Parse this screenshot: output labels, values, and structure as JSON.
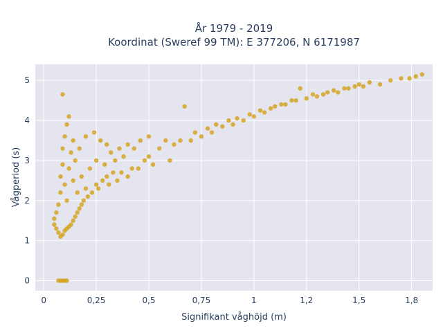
{
  "chart_data": {
    "type": "scatter",
    "title_line1": "År 1979 - 2019",
    "title_line2": "Koordinat (Sweref 99 TM): E 377206, N 6171987",
    "xlabel": "Signifikant våghöjd (m)",
    "ylabel": "Vågperiod (s)",
    "xlim": [
      -0.04,
      1.85
    ],
    "ylim": [
      -0.25,
      5.4
    ],
    "x_ticks": [
      {
        "value": 0,
        "label": "0"
      },
      {
        "value": 0.25,
        "label": "0,25"
      },
      {
        "value": 0.5,
        "label": "0,5"
      },
      {
        "value": 0.75,
        "label": "0,75"
      },
      {
        "value": 1,
        "label": "1"
      },
      {
        "value": 1.25,
        "label": "1,2"
      },
      {
        "value": 1.5,
        "label": "1,5"
      },
      {
        "value": 1.75,
        "label": "1,8"
      }
    ],
    "y_ticks": [
      {
        "value": 0,
        "label": "0"
      },
      {
        "value": 1,
        "label": "1"
      },
      {
        "value": 2,
        "label": "2"
      },
      {
        "value": 3,
        "label": "3"
      },
      {
        "value": 4,
        "label": "4"
      },
      {
        "value": 5,
        "label": "5"
      }
    ],
    "grid": true,
    "point_color": "#D4A017",
    "background_color": "#E5E5EF",
    "grid_color": "#FFFFFF",
    "series": [
      {
        "points": [
          [
            0.07,
            0
          ],
          [
            0.08,
            0
          ],
          [
            0.09,
            0
          ],
          [
            0.1,
            0
          ],
          [
            0.11,
            0
          ],
          [
            0.09,
            4.65
          ],
          [
            0.05,
            1.4
          ],
          [
            0.05,
            1.55
          ],
          [
            0.06,
            1.3
          ],
          [
            0.06,
            1.7
          ],
          [
            0.07,
            1.2
          ],
          [
            0.07,
            1.9
          ],
          [
            0.08,
            1.1
          ],
          [
            0.08,
            2.2
          ],
          [
            0.08,
            2.6
          ],
          [
            0.09,
            1.15
          ],
          [
            0.09,
            2.9
          ],
          [
            0.09,
            3.3
          ],
          [
            0.1,
            1.25
          ],
          [
            0.1,
            2.4
          ],
          [
            0.1,
            3.6
          ],
          [
            0.11,
            1.3
          ],
          [
            0.11,
            2.0
          ],
          [
            0.11,
            3.9
          ],
          [
            0.12,
            1.35
          ],
          [
            0.12,
            2.8
          ],
          [
            0.12,
            4.1
          ],
          [
            0.13,
            1.4
          ],
          [
            0.13,
            3.2
          ],
          [
            0.14,
            1.5
          ],
          [
            0.14,
            2.5
          ],
          [
            0.14,
            3.5
          ],
          [
            0.15,
            1.6
          ],
          [
            0.15,
            3.0
          ],
          [
            0.16,
            1.7
          ],
          [
            0.16,
            2.2
          ],
          [
            0.17,
            1.8
          ],
          [
            0.17,
            3.3
          ],
          [
            0.18,
            1.9
          ],
          [
            0.18,
            2.6
          ],
          [
            0.19,
            2.0
          ],
          [
            0.2,
            3.6
          ],
          [
            0.2,
            2.3
          ],
          [
            0.21,
            2.1
          ],
          [
            0.22,
            2.8
          ],
          [
            0.23,
            2.2
          ],
          [
            0.24,
            3.7
          ],
          [
            0.25,
            2.4
          ],
          [
            0.25,
            3.0
          ],
          [
            0.26,
            2.3
          ],
          [
            0.27,
            3.5
          ],
          [
            0.28,
            2.5
          ],
          [
            0.29,
            2.9
          ],
          [
            0.3,
            2.6
          ],
          [
            0.3,
            3.4
          ],
          [
            0.31,
            2.4
          ],
          [
            0.32,
            3.2
          ],
          [
            0.33,
            2.7
          ],
          [
            0.34,
            3.0
          ],
          [
            0.35,
            2.5
          ],
          [
            0.36,
            3.3
          ],
          [
            0.37,
            2.7
          ],
          [
            0.38,
            3.1
          ],
          [
            0.4,
            2.6
          ],
          [
            0.4,
            3.4
          ],
          [
            0.42,
            2.8
          ],
          [
            0.43,
            3.3
          ],
          [
            0.45,
            2.8
          ],
          [
            0.46,
            3.5
          ],
          [
            0.48,
            3.0
          ],
          [
            0.5,
            3.1
          ],
          [
            0.5,
            3.6
          ],
          [
            0.52,
            2.9
          ],
          [
            0.55,
            3.3
          ],
          [
            0.58,
            3.5
          ],
          [
            0.6,
            3.0
          ],
          [
            0.62,
            3.4
          ],
          [
            0.65,
            3.5
          ],
          [
            0.67,
            4.35
          ],
          [
            0.7,
            3.5
          ],
          [
            0.72,
            3.7
          ],
          [
            0.75,
            3.6
          ],
          [
            0.78,
            3.8
          ],
          [
            0.8,
            3.7
          ],
          [
            0.82,
            3.9
          ],
          [
            0.85,
            3.85
          ],
          [
            0.88,
            4.0
          ],
          [
            0.9,
            3.9
          ],
          [
            0.92,
            4.05
          ],
          [
            0.95,
            4.0
          ],
          [
            0.98,
            4.15
          ],
          [
            1.0,
            4.1
          ],
          [
            1.03,
            4.25
          ],
          [
            1.05,
            4.2
          ],
          [
            1.08,
            4.3
          ],
          [
            1.1,
            4.35
          ],
          [
            1.13,
            4.4
          ],
          [
            1.15,
            4.4
          ],
          [
            1.18,
            4.5
          ],
          [
            1.2,
            4.5
          ],
          [
            1.22,
            4.8
          ],
          [
            1.25,
            4.55
          ],
          [
            1.28,
            4.65
          ],
          [
            1.3,
            4.6
          ],
          [
            1.33,
            4.65
          ],
          [
            1.35,
            4.7
          ],
          [
            1.38,
            4.75
          ],
          [
            1.4,
            4.7
          ],
          [
            1.43,
            4.8
          ],
          [
            1.45,
            4.8
          ],
          [
            1.48,
            4.85
          ],
          [
            1.5,
            4.9
          ],
          [
            1.52,
            4.85
          ],
          [
            1.55,
            4.95
          ],
          [
            1.6,
            4.9
          ],
          [
            1.65,
            5.0
          ],
          [
            1.7,
            5.05
          ],
          [
            1.74,
            5.05
          ],
          [
            1.77,
            5.1
          ],
          [
            1.8,
            5.15
          ]
        ]
      }
    ]
  }
}
